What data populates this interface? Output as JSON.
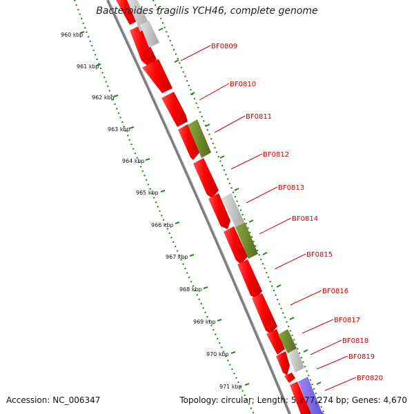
{
  "title": "Bacteroides fragilis YCH46, complete genome",
  "footer": {
    "accession": "Accession: NC_006347",
    "topology": "Topology: circular; Length: 5,277,274 bp; Genes: 4,670"
  },
  "colors": {
    "forward_gene": "#ff0000",
    "reverse_gene": "#ff0000",
    "green_feature": "#6b8e23",
    "grey_feature": "#c8c8c8",
    "blue_feature": "#7b68ee",
    "backbone": "#808080",
    "tick": "#008000",
    "label": "#cc0000"
  },
  "kbp_ticks": [
    "960 kbp",
    "961 kbp",
    "962 kbp",
    "963 kbp",
    "964 kbp",
    "965 kbp",
    "966 kbp",
    "967 kbp",
    "968 kbp",
    "969 kbp",
    "970 kbp",
    "971 kbp"
  ],
  "gene_labels": [
    "BF0809",
    "BF0810",
    "BF0811",
    "BF0812",
    "BF0813",
    "BF0814",
    "BF0815",
    "BF0816",
    "BF0817",
    "BF0818",
    "BF0819",
    "BF0820"
  ]
}
